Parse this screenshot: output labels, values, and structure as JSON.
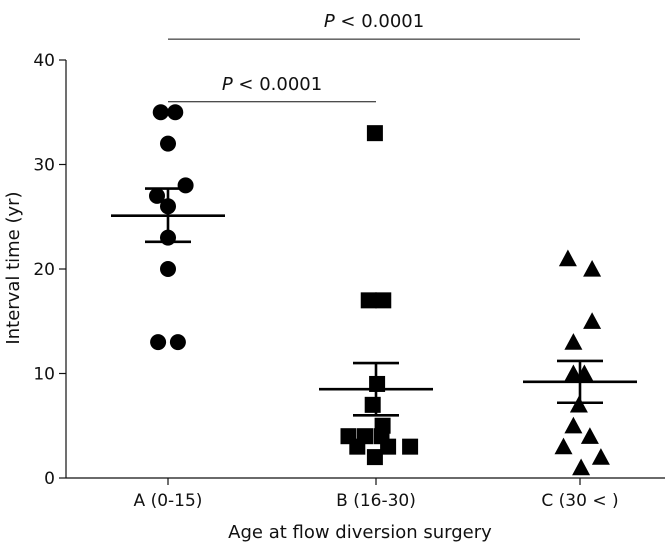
{
  "chart_data": {
    "type": "scatter",
    "xlabel": "Age at flow diversion surgery",
    "ylabel": "Interval time (yr)",
    "ylim": [
      0,
      40
    ],
    "yticks": [
      0,
      10,
      20,
      30,
      40
    ],
    "categories": [
      "A (0-15)",
      "B (16-30)",
      "C (30 < )"
    ],
    "grid": false,
    "groups": [
      {
        "category": "A (0-15)",
        "marker": "circle",
        "points": [
          {
            "offset": -0.33,
            "y": 35
          },
          {
            "offset": 0.33,
            "y": 35
          },
          {
            "offset": 0,
            "y": 32
          },
          {
            "offset": -0.5,
            "y": 27
          },
          {
            "offset": 0.8,
            "y": 28
          },
          {
            "offset": 0,
            "y": 26
          },
          {
            "offset": 0,
            "y": 23
          },
          {
            "offset": 0,
            "y": 20
          },
          {
            "offset": -0.45,
            "y": 13
          },
          {
            "offset": 0.45,
            "y": 13
          }
        ],
        "mean": 25.1,
        "sem_low": 22.6,
        "sem_high": 27.7
      },
      {
        "category": "B (16-30)",
        "marker": "square",
        "points": [
          {
            "offset": -0.05,
            "y": 33
          },
          {
            "offset": -0.33,
            "y": 17
          },
          {
            "offset": 0.33,
            "y": 17
          },
          {
            "offset": 0.05,
            "y": 9
          },
          {
            "offset": -0.15,
            "y": 7
          },
          {
            "offset": 0.3,
            "y": 5
          },
          {
            "offset": -1.25,
            "y": 4
          },
          {
            "offset": -0.5,
            "y": 4
          },
          {
            "offset": 0.25,
            "y": 4
          },
          {
            "offset": -0.85,
            "y": 3
          },
          {
            "offset": 0.55,
            "y": 3
          },
          {
            "offset": 1.55,
            "y": 3
          },
          {
            "offset": -0.05,
            "y": 2
          }
        ],
        "mean": 8.5,
        "sem_low": 6.0,
        "sem_high": 11.0
      },
      {
        "category": "C (30 < )",
        "marker": "triangle",
        "points": [
          {
            "offset": -0.55,
            "y": 21
          },
          {
            "offset": 0.55,
            "y": 20
          },
          {
            "offset": 0.55,
            "y": 15
          },
          {
            "offset": -0.3,
            "y": 13
          },
          {
            "offset": -0.3,
            "y": 10
          },
          {
            "offset": 0.2,
            "y": 10
          },
          {
            "offset": -0.05,
            "y": 7
          },
          {
            "offset": -0.3,
            "y": 5
          },
          {
            "offset": 0.45,
            "y": 4
          },
          {
            "offset": -0.75,
            "y": 3
          },
          {
            "offset": 0.95,
            "y": 2
          },
          {
            "offset": 0.05,
            "y": 1
          }
        ],
        "mean": 9.2,
        "sem_low": 7.2,
        "sem_high": 11.2
      }
    ],
    "comparisons": [
      {
        "from": "A (0-15)",
        "to": "B (16-30)",
        "y": 36,
        "label_italic": "P",
        "label_rest": " < 0.0001"
      },
      {
        "from": "A (0-15)",
        "to": "C (30 < )",
        "y": 42,
        "label_italic": "P",
        "label_rest": " < 0.0001"
      }
    ]
  }
}
